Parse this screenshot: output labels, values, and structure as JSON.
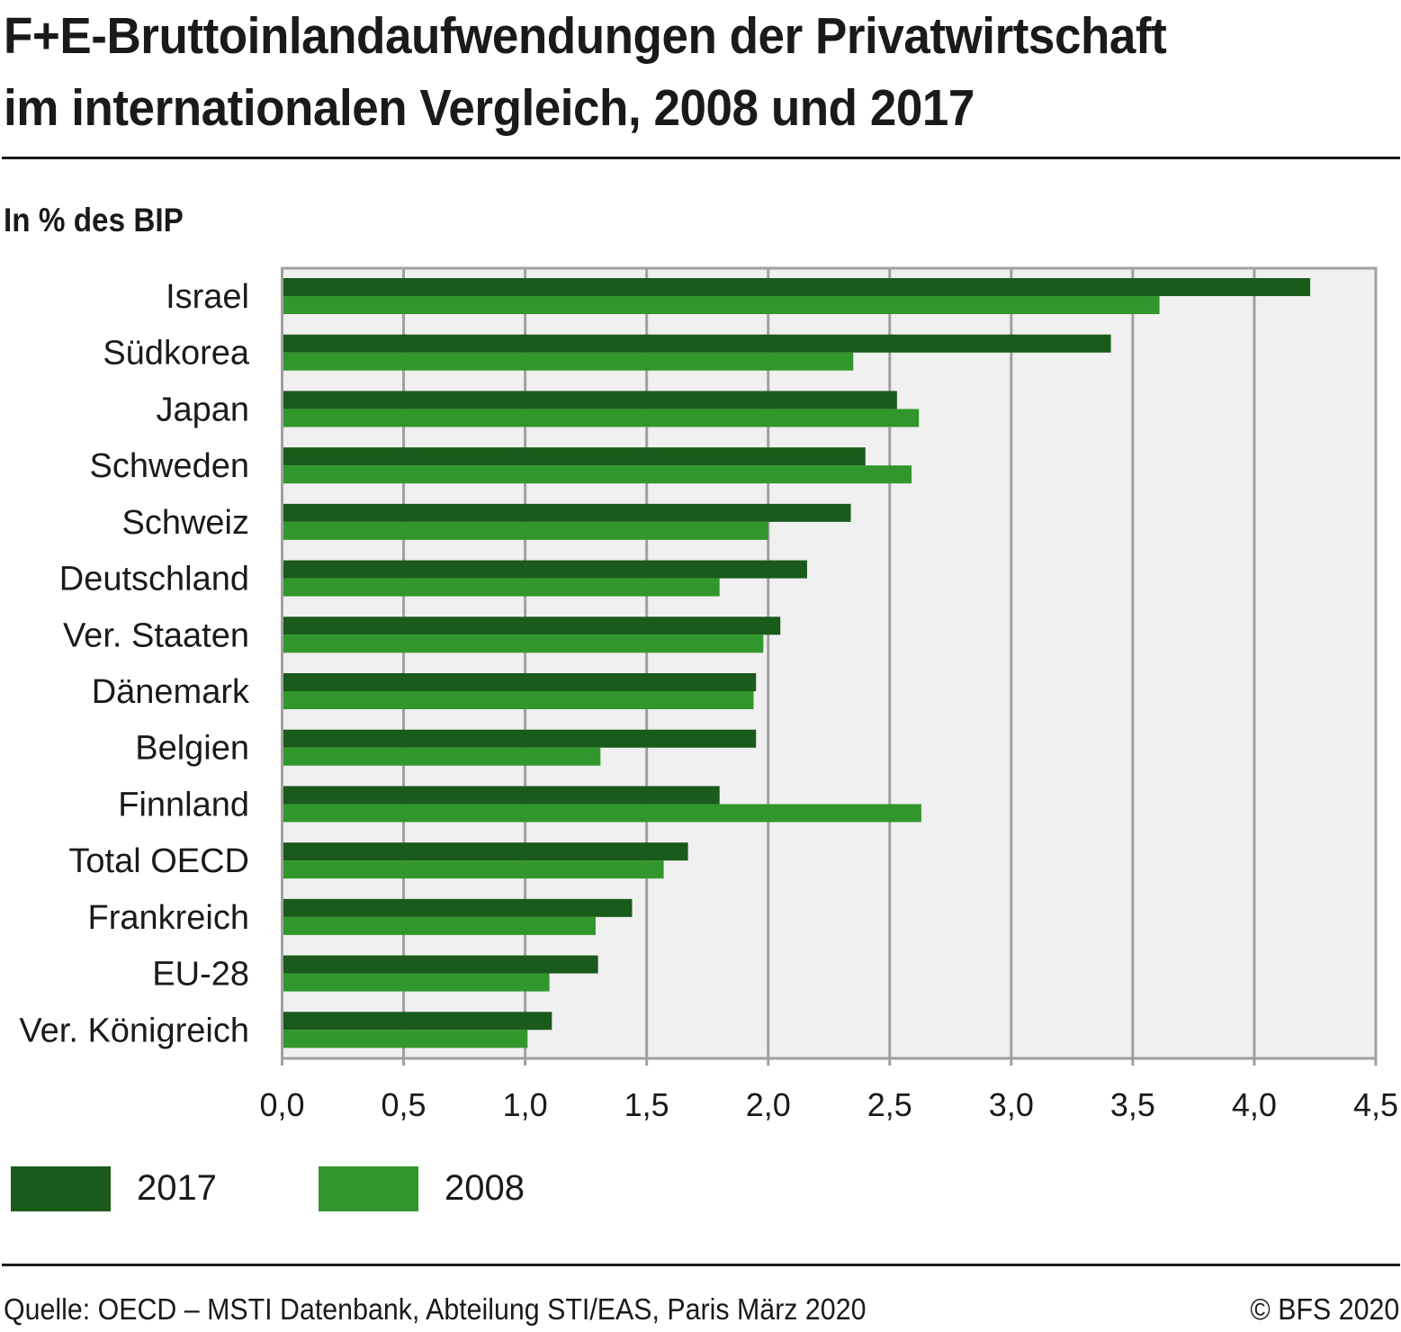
{
  "header": {
    "title_line1": "F+E-Bruttoinlandaufwendungen der Privatwirtschaft",
    "title_line2": "im internationalen Vergleich, 2008 und 2017",
    "subtitle": "In % des BIP"
  },
  "legend": [
    {
      "label": "2017",
      "color": "#1a5a1a"
    },
    {
      "label": "2008",
      "color": "#31972c"
    }
  ],
  "footer": {
    "source": "Quelle: OECD – MSTI Datenbank, Abteilung STI/EAS, Paris März 2020",
    "copyright": "© BFS 2020"
  },
  "chart_data": {
    "type": "bar",
    "orientation": "horizontal",
    "title": "F+E-Bruttoinlandaufwendungen der Privatwirtschaft im internationalen Vergleich, 2008 und 2017",
    "subtitle": "In % des BIP",
    "xlabel": "",
    "ylabel": "",
    "xlim": [
      0,
      4.5
    ],
    "x_ticks": [
      "0,0",
      "0,5",
      "1,0",
      "1,5",
      "2,0",
      "2,5",
      "3,0",
      "3,5",
      "4,0",
      "4,5"
    ],
    "x_tick_values": [
      0,
      0.5,
      1.0,
      1.5,
      2.0,
      2.5,
      3.0,
      3.5,
      4.0,
      4.5
    ],
    "grid": "vertical",
    "legend_position": "bottom-left",
    "categories": [
      "Israel",
      "Südkorea",
      "Japan",
      "Schweden",
      "Schweiz",
      "Deutschland",
      "Ver. Staaten",
      "Dänemark",
      "Belgien",
      "Finnland",
      "Total OECD",
      "Frankreich",
      "EU-28",
      "Ver. Königreich"
    ],
    "series": [
      {
        "name": "2017",
        "color": "#1a5a1a",
        "values": [
          4.23,
          3.41,
          2.53,
          2.4,
          2.34,
          2.16,
          2.05,
          1.95,
          1.95,
          1.8,
          1.67,
          1.44,
          1.3,
          1.11
        ]
      },
      {
        "name": "2008",
        "color": "#31972c",
        "values": [
          3.61,
          2.35,
          2.62,
          2.59,
          2.0,
          1.8,
          1.98,
          1.94,
          1.31,
          2.63,
          1.57,
          1.29,
          1.1,
          1.01
        ]
      }
    ]
  }
}
